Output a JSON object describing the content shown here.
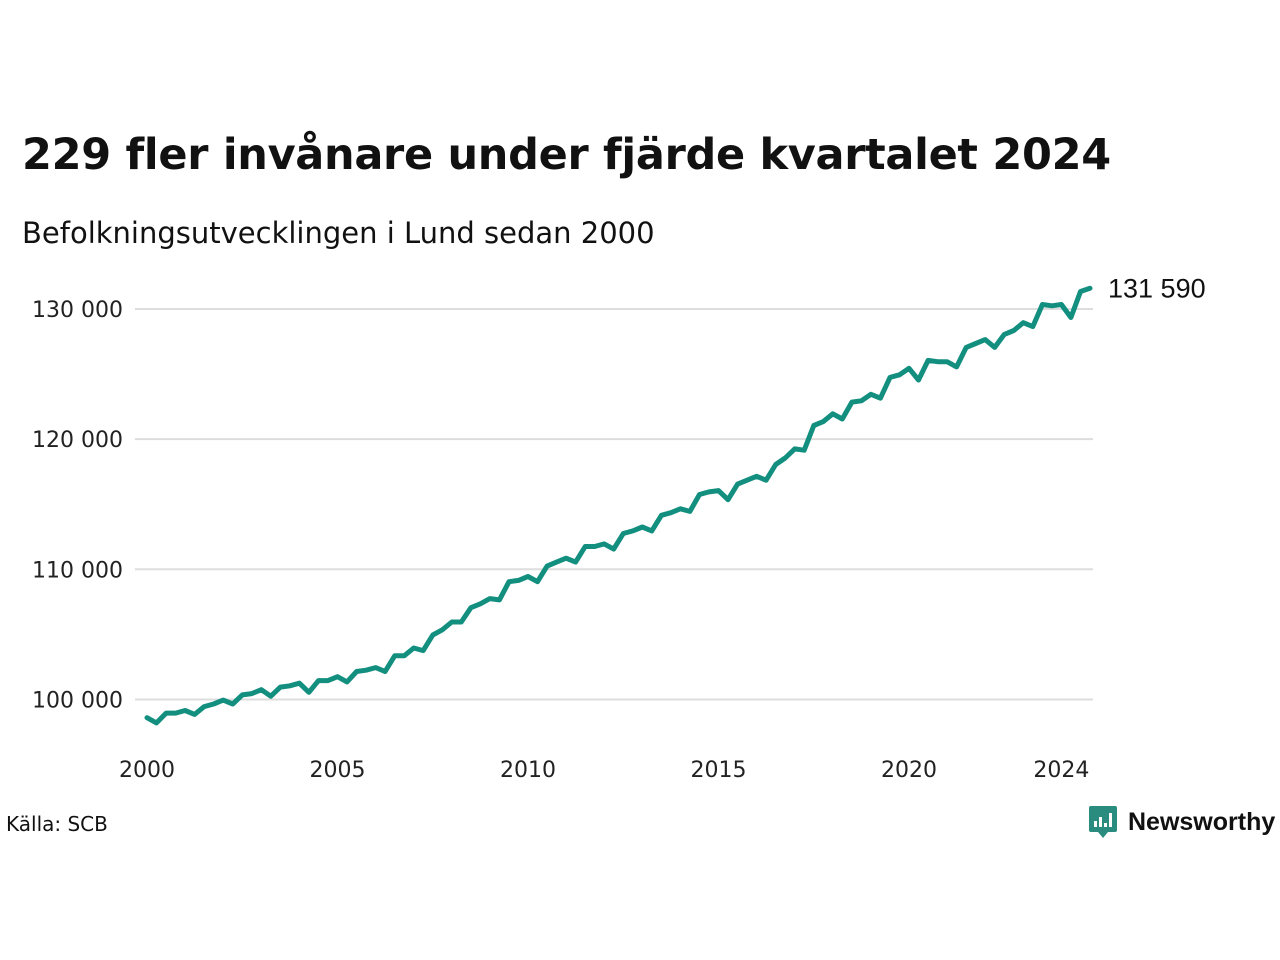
{
  "title": "229 fler invånare under fjärde kvartalet 2024",
  "subtitle": "Befolkningsutvecklingen i Lund sedan 2000",
  "source": "Källa: SCB",
  "brand": {
    "name": "Newsworthy",
    "icon": "newsworthy-logo-icon",
    "color": "#2a8c7e"
  },
  "chart_data": {
    "type": "line",
    "line_color": "#138f7f",
    "grid": true,
    "legend": "none",
    "end_label": "131 590",
    "x_ticks": [
      {
        "value": 2000,
        "label": "2000"
      },
      {
        "value": 2005,
        "label": "2005"
      },
      {
        "value": 2010,
        "label": "2010"
      },
      {
        "value": 2015,
        "label": "2015"
      },
      {
        "value": 2020,
        "label": "2020"
      },
      {
        "value": 2024,
        "label": "2024"
      }
    ],
    "y_ticks": [
      {
        "value": 100000,
        "label": "100 000"
      },
      {
        "value": 110000,
        "label": "110 000"
      },
      {
        "value": 120000,
        "label": "120 000"
      },
      {
        "value": 130000,
        "label": "130 000"
      }
    ],
    "xlim": [
      2000,
      2024.75
    ],
    "ylim": [
      95500,
      133000
    ],
    "x": [
      2000.0,
      2000.25,
      2000.5,
      2000.75,
      2001.0,
      2001.25,
      2001.5,
      2001.75,
      2002.0,
      2002.25,
      2002.5,
      2002.75,
      2003.0,
      2003.25,
      2003.5,
      2003.75,
      2004.0,
      2004.25,
      2004.5,
      2004.75,
      2005.0,
      2005.25,
      2005.5,
      2005.75,
      2006.0,
      2006.25,
      2006.5,
      2006.75,
      2007.0,
      2007.25,
      2007.5,
      2007.75,
      2008.0,
      2008.25,
      2008.5,
      2008.75,
      2009.0,
      2009.25,
      2009.5,
      2009.75,
      2010.0,
      2010.25,
      2010.5,
      2010.75,
      2011.0,
      2011.25,
      2011.5,
      2011.75,
      2012.0,
      2012.25,
      2012.5,
      2012.75,
      2013.0,
      2013.25,
      2013.5,
      2013.75,
      2014.0,
      2014.25,
      2014.5,
      2014.75,
      2015.0,
      2015.25,
      2015.5,
      2015.75,
      2016.0,
      2016.25,
      2016.5,
      2016.75,
      2017.0,
      2017.25,
      2017.5,
      2017.75,
      2018.0,
      2018.25,
      2018.5,
      2018.75,
      2019.0,
      2019.25,
      2019.5,
      2019.75,
      2020.0,
      2020.25,
      2020.5,
      2020.75,
      2021.0,
      2021.25,
      2021.5,
      2021.75,
      2022.0,
      2022.25,
      2022.5,
      2022.75,
      2023.0,
      2023.25,
      2023.5,
      2023.75,
      2024.0,
      2024.25,
      2024.5,
      2024.75
    ],
    "y": [
      98600,
      98200,
      98950,
      98950,
      99150,
      98850,
      99450,
      99650,
      99950,
      99650,
      100350,
      100450,
      100750,
      100250,
      100950,
      101050,
      101250,
      100550,
      101450,
      101450,
      101750,
      101350,
      102150,
      102250,
      102450,
      102150,
      103350,
      103350,
      103950,
      103750,
      104950,
      105350,
      105950,
      105950,
      107050,
      107350,
      107750,
      107650,
      109050,
      109150,
      109450,
      109050,
      110250,
      110550,
      110850,
      110550,
      111750,
      111750,
      111950,
      111550,
      112750,
      112950,
      113250,
      112950,
      114150,
      114350,
      114650,
      114450,
      115750,
      115950,
      116050,
      115350,
      116550,
      116850,
      117150,
      116850,
      118050,
      118550,
      119250,
      119150,
      121050,
      121350,
      121950,
      121550,
      122850,
      122950,
      123450,
      123150,
      124750,
      124950,
      125450,
      124550,
      126050,
      125950,
      125950,
      125550,
      127050,
      127350,
      127650,
      127050,
      128050,
      128350,
      128950,
      128650,
      130350,
      130250,
      130350,
      129350,
      131350,
      131590
    ]
  }
}
